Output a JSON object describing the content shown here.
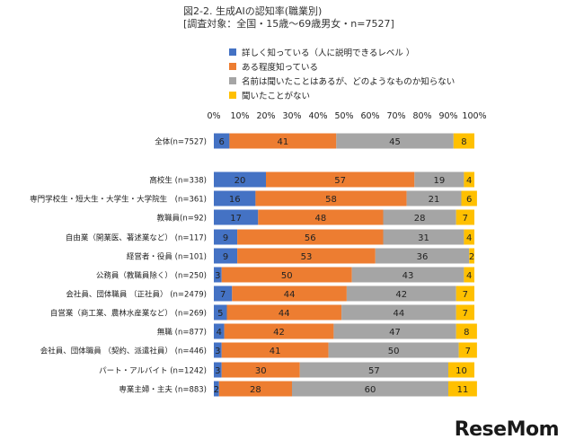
{
  "title": "図2-2. 生成AIの認知率(職業別)",
  "subtitle": "[調査対象：全国・15歳〜69歳男女・n=7527]",
  "watermark": "ReseMom",
  "chart_data": {
    "type": "bar",
    "orientation": "horizontal",
    "stacked": "percent",
    "title": "図2-2. 生成AIの認知率(職業別)",
    "subtitle": "[調査対象：全国・15歳〜69歳男女・n=7527]",
    "xlim": [
      0,
      100
    ],
    "xticks": [
      "0%",
      "10%",
      "20%",
      "30%",
      "40%",
      "50%",
      "60%",
      "70%",
      "80%",
      "90%",
      "100%"
    ],
    "legend_position": "top",
    "grid": false,
    "categories": [
      "全体(n=7527)",
      "高校生 (n=338)",
      "専門学校生・短大生・大学生・大学院生　(n=361)",
      "教職員(n=92)",
      "自由業（開業医、著述業など） (n=117)",
      "経営者・役員 (n=101)",
      "公務員（教職員除く） (n=250)",
      "会社員、団体職員 （正社員） (n=2479)",
      "自営業（商工業、農林水産業など） (n=269)",
      "無職 (n=877)",
      "会社員、団体職員 （契約、派遣社員） (n=446)",
      "パート・アルバイト (n=1242)",
      "専業主婦・主夫 (n=883)"
    ],
    "series": [
      {
        "name": "詳しく知っている（人に説明できるレベル ）",
        "color": "#4472c4",
        "values": [
          6,
          20,
          16,
          17,
          9,
          9,
          3,
          7,
          5,
          4,
          3,
          3,
          2
        ]
      },
      {
        "name": "ある程度知っている",
        "color": "#ed7d31",
        "values": [
          41,
          57,
          58,
          48,
          56,
          53,
          50,
          44,
          44,
          42,
          41,
          30,
          28
        ]
      },
      {
        "name": "名前は聞いたことはあるが、どのようなものか知らない",
        "color": "#a5a5a5",
        "values": [
          45,
          19,
          21,
          28,
          31,
          36,
          43,
          42,
          44,
          47,
          50,
          57,
          60
        ]
      },
      {
        "name": "聞いたことがない",
        "color": "#ffc000",
        "values": [
          8,
          4,
          6,
          7,
          4,
          2,
          4,
          7,
          7,
          8,
          7,
          10,
          11
        ]
      }
    ]
  }
}
